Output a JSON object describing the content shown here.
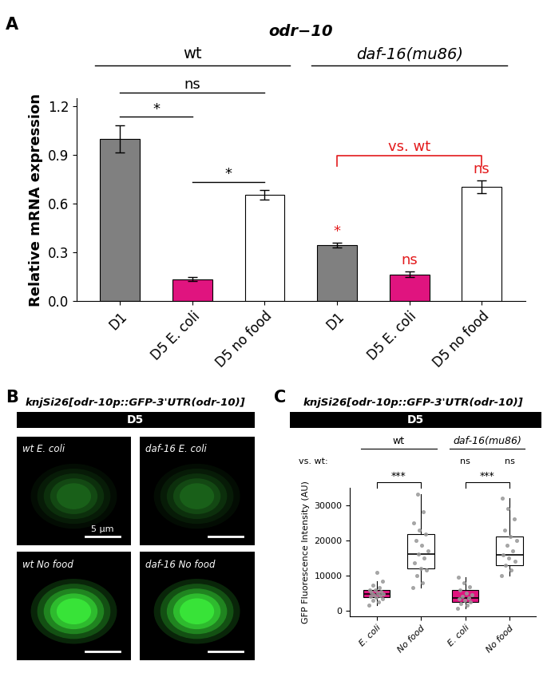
{
  "chart_data": [
    {
      "panel": "A",
      "type": "bar",
      "title": "odr−10",
      "y_label": "Relative mRNA expression",
      "categories": [
        "D1",
        "D5 E. coli",
        "D5 no food",
        "D1",
        "D5 E. coli",
        "D5 no food"
      ],
      "values": [
        1.0,
        0.135,
        0.655,
        0.345,
        0.165,
        0.705
      ],
      "errors": [
        0.085,
        0.012,
        0.03,
        0.015,
        0.018,
        0.04
      ],
      "colors": [
        "#808080",
        "#e0147f",
        "#ffffff",
        "#808080",
        "#e0147f",
        "#ffffff"
      ],
      "ylim": [
        0,
        1.25
      ],
      "yticks": [
        {
          "value": 0,
          "label": "0.0"
        },
        {
          "value": 0.3,
          "label": "0.3"
        },
        {
          "value": 0.6,
          "label": "0.6"
        },
        {
          "value": 0.9,
          "label": "0.9"
        },
        {
          "value": 1.2,
          "label": "1.2"
        }
      ],
      "groups": [
        "wt",
        "daf-16(mu86)"
      ],
      "comparisons": [
        "*",
        "ns",
        "*"
      ],
      "vs_wt": {
        "label": "vs. wt",
        "marks": [
          "*",
          "ns",
          "ns"
        ]
      }
    },
    {
      "panel": "C",
      "type": "box",
      "title": "knjSi26[odr-10p::GFP-3'UTR(odr-10)]",
      "header": "D5",
      "y_label": "GFP Fluorescence Intensity (AU)",
      "categories": [
        "E. coli",
        "No food",
        "E. coli",
        "No food"
      ],
      "boxes": [
        {
          "whislo": 1500,
          "q1": 3800,
          "med": 4700,
          "q3": 6000,
          "whishi": 8500
        },
        {
          "whislo": 6500,
          "q1": 12000,
          "med": 16000,
          "q3": 21800,
          "whishi": 33000
        },
        {
          "whislo": 800,
          "q1": 2500,
          "med": 3600,
          "q3": 5800,
          "whishi": 9500
        },
        {
          "whislo": 10000,
          "q1": 13000,
          "med": 15800,
          "q3": 21000,
          "whishi": 32000
        }
      ],
      "points": [
        [
          1500,
          2500,
          3000,
          3500,
          3800,
          4000,
          4300,
          4500,
          4700,
          4900,
          5200,
          5500,
          5800,
          6000,
          6500,
          7200,
          8500,
          11000
        ],
        [
          6500,
          8000,
          10000,
          11500,
          12000,
          13500,
          15000,
          16000,
          17000,
          18500,
          20000,
          21800,
          23000,
          25000,
          28000,
          33000
        ],
        [
          800,
          1500,
          2000,
          2500,
          3000,
          3300,
          3600,
          4000,
          4500,
          5000,
          5800,
          6800,
          8000,
          9500
        ],
        [
          10000,
          11500,
          13000,
          14000,
          15000,
          15800,
          17000,
          18500,
          20000,
          21000,
          23000,
          26000,
          29000,
          32000
        ]
      ],
      "colors": [
        "#e0147f",
        "#ffffff",
        "#e0147f",
        "#ffffff"
      ],
      "ylim": [
        -1500,
        35000
      ],
      "yticks": [
        0,
        10000,
        20000,
        30000
      ],
      "groups": [
        "wt",
        "daf-16(mu86)"
      ],
      "comparisons": [
        "***",
        "***"
      ],
      "vs_wt": {
        "label": "vs. wt:",
        "marks": [
          "ns",
          "ns"
        ]
      }
    }
  ],
  "image_panel": {
    "panel": "B",
    "title": "knjSi26[odr-10p::GFP-3'UTR(odr-10)]",
    "header": "D5",
    "images": [
      "wt E. coli",
      "daf-16 E. coli",
      "wt No food",
      "daf-16 No food"
    ],
    "scale_bar": "5 µm"
  }
}
